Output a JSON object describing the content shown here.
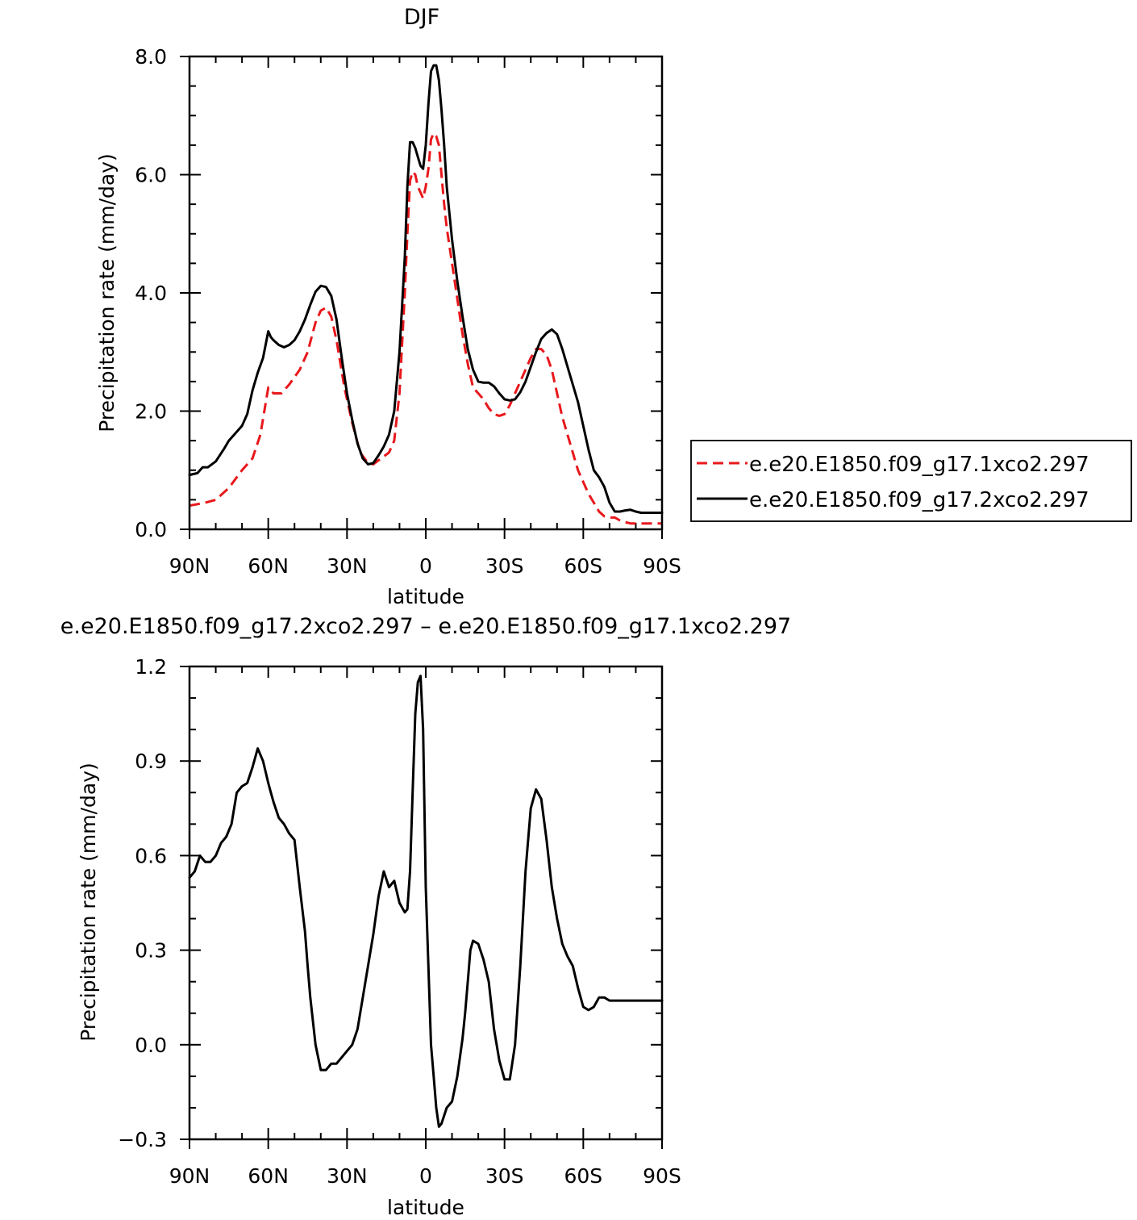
{
  "colors": {
    "series_a": "#e8181c",
    "series_b": "#000000",
    "axes": "#000000"
  },
  "chart_data": [
    {
      "type": "line",
      "title": "DJF",
      "xlabel": "latitude",
      "ylabel": "Precipitation rate (mm/day)",
      "xlim": [
        -90,
        90
      ],
      "ylim": [
        0,
        8
      ],
      "xticks": [
        {
          "v": -90,
          "label": "90N"
        },
        {
          "v": -60,
          "label": "60N"
        },
        {
          "v": -30,
          "label": "30N"
        },
        {
          "v": 0,
          "label": "0"
        },
        {
          "v": 30,
          "label": "30S"
        },
        {
          "v": 60,
          "label": "60S"
        },
        {
          "v": 90,
          "label": "90S"
        }
      ],
      "yticks": [
        {
          "v": 0,
          "label": "0.0"
        },
        {
          "v": 2,
          "label": "2.0"
        },
        {
          "v": 4,
          "label": "4.0"
        },
        {
          "v": 6,
          "label": "6.0"
        },
        {
          "v": 8,
          "label": "8.0"
        }
      ],
      "legend_position": "right",
      "series": [
        {
          "name": "e.e20.E1850.f09_g17.1xco2.297",
          "style": "dashed",
          "color": "#e8181c",
          "x": [
            -90,
            -84,
            -80,
            -75,
            -70,
            -66,
            -63,
            -60,
            -58,
            -55,
            -52,
            -48,
            -45,
            -42,
            -40,
            -38,
            -36,
            -34,
            -31,
            -28,
            -25,
            -22,
            -20,
            -17,
            -14,
            -12,
            -10,
            -8,
            -7,
            -6,
            -5,
            -4,
            -3,
            -2,
            -1,
            0,
            1,
            2,
            3,
            4,
            5,
            6,
            7,
            8,
            10,
            12,
            14,
            16,
            18,
            20,
            22,
            24,
            26,
            28,
            30,
            32,
            34,
            36,
            38,
            40,
            42,
            44,
            46,
            48,
            50,
            52,
            54,
            56,
            58,
            60,
            62,
            64,
            66,
            68,
            70,
            72,
            74,
            76,
            78,
            80,
            82,
            84,
            86,
            88,
            90
          ],
          "y": [
            0.4,
            0.45,
            0.5,
            0.7,
            1.0,
            1.2,
            1.6,
            2.4,
            2.3,
            2.3,
            2.45,
            2.7,
            3.0,
            3.5,
            3.7,
            3.75,
            3.6,
            3.2,
            2.4,
            1.8,
            1.3,
            1.12,
            1.1,
            1.2,
            1.3,
            1.5,
            2.3,
            4.0,
            5.0,
            5.9,
            6.05,
            6.0,
            5.8,
            5.7,
            5.6,
            5.8,
            6.1,
            6.6,
            6.7,
            6.65,
            6.5,
            6.0,
            5.5,
            5.1,
            4.5,
            3.9,
            3.3,
            2.8,
            2.4,
            2.3,
            2.2,
            2.05,
            1.95,
            1.92,
            1.95,
            2.1,
            2.3,
            2.5,
            2.7,
            2.9,
            3.05,
            3.05,
            2.95,
            2.7,
            2.3,
            1.9,
            1.6,
            1.3,
            1.0,
            0.8,
            0.6,
            0.45,
            0.3,
            0.22,
            0.2,
            0.2,
            0.15,
            0.12,
            0.1,
            0.1,
            0.1,
            0.1,
            0.1,
            0.1,
            0.1
          ]
        },
        {
          "name": "e.e20.E1850.f09_g17.2xco2.297",
          "style": "solid",
          "color": "#000000",
          "x": [
            -90,
            -87,
            -85,
            -83,
            -80,
            -77,
            -75,
            -72,
            -70,
            -68,
            -66,
            -64,
            -62,
            -60,
            -59,
            -58,
            -56,
            -54,
            -52,
            -50,
            -48,
            -46,
            -44,
            -42,
            -40,
            -38,
            -36,
            -34,
            -32,
            -30,
            -28,
            -26,
            -24,
            -22,
            -20,
            -18,
            -16,
            -14,
            -12,
            -10,
            -8,
            -7,
            -6,
            -5,
            -4,
            -3,
            -2,
            -1,
            0,
            1,
            2,
            3,
            4,
            5,
            6,
            7,
            8,
            10,
            12,
            14,
            16,
            18,
            20,
            22,
            24,
            26,
            28,
            30,
            32,
            34,
            36,
            38,
            40,
            42,
            44,
            46,
            48,
            50,
            52,
            54,
            56,
            58,
            60,
            62,
            64,
            66,
            68,
            70,
            72,
            74,
            76,
            78,
            80,
            82,
            84,
            86,
            88,
            90
          ],
          "y": [
            0.92,
            0.95,
            1.05,
            1.05,
            1.15,
            1.35,
            1.5,
            1.65,
            1.75,
            1.95,
            2.35,
            2.65,
            2.9,
            3.35,
            3.25,
            3.2,
            3.12,
            3.08,
            3.12,
            3.2,
            3.35,
            3.55,
            3.8,
            4.02,
            4.12,
            4.1,
            3.95,
            3.55,
            2.9,
            2.3,
            1.85,
            1.45,
            1.2,
            1.1,
            1.12,
            1.25,
            1.4,
            1.6,
            2.0,
            3.0,
            4.6,
            5.8,
            6.55,
            6.55,
            6.45,
            6.3,
            6.15,
            6.1,
            6.5,
            7.2,
            7.75,
            7.85,
            7.85,
            7.6,
            7.1,
            6.5,
            5.8,
            4.9,
            4.2,
            3.6,
            3.05,
            2.7,
            2.5,
            2.48,
            2.48,
            2.42,
            2.3,
            2.2,
            2.18,
            2.2,
            2.32,
            2.5,
            2.75,
            3.0,
            3.22,
            3.32,
            3.38,
            3.3,
            3.05,
            2.75,
            2.45,
            2.15,
            1.75,
            1.35,
            1.0,
            0.88,
            0.72,
            0.45,
            0.3,
            0.3,
            0.32,
            0.33,
            0.3,
            0.28,
            0.28,
            0.28,
            0.28,
            0.28
          ]
        }
      ]
    },
    {
      "type": "line",
      "title": "e.e20.E1850.f09_g17.2xco2.297 – e.e20.E1850.f09_g17.1xco2.297",
      "xlabel": "latitude",
      "ylabel": "Precipitation rate (mm/day)",
      "xlim": [
        -90,
        90
      ],
      "ylim": [
        -0.3,
        1.2
      ],
      "xticks": [
        {
          "v": -90,
          "label": "90N"
        },
        {
          "v": -60,
          "label": "60N"
        },
        {
          "v": -30,
          "label": "30N"
        },
        {
          "v": 0,
          "label": "0"
        },
        {
          "v": 30,
          "label": "30S"
        },
        {
          "v": 60,
          "label": "60S"
        },
        {
          "v": 90,
          "label": "90S"
        }
      ],
      "yticks": [
        {
          "v": -0.3,
          "label": "−0.3"
        },
        {
          "v": 0,
          "label": "0.0"
        },
        {
          "v": 0.3,
          "label": "0.3"
        },
        {
          "v": 0.6,
          "label": "0.6"
        },
        {
          "v": 0.9,
          "label": "0.9"
        },
        {
          "v": 1.2,
          "label": "1.2"
        }
      ],
      "series": [
        {
          "style": "solid",
          "color": "#000000",
          "x": [
            -90,
            -88,
            -86,
            -84,
            -82,
            -80,
            -78,
            -76,
            -74,
            -72,
            -70,
            -68,
            -66,
            -64,
            -62,
            -60,
            -59,
            -58,
            -56,
            -54,
            -52,
            -50,
            -48,
            -46,
            -45,
            -44,
            -42,
            -40,
            -38,
            -36,
            -34,
            -32,
            -30,
            -28,
            -26,
            -24,
            -22,
            -20,
            -18,
            -16,
            -14,
            -12,
            -10,
            -8,
            -7,
            -6,
            -5,
            -4,
            -3,
            -2,
            -1,
            0,
            2,
            3,
            4,
            5,
            6,
            8,
            10,
            12,
            14,
            15,
            16,
            17,
            18,
            20,
            22,
            24,
            26,
            28,
            30,
            32,
            34,
            36,
            38,
            40,
            42,
            44,
            46,
            48,
            50,
            52,
            54,
            56,
            58,
            60,
            62,
            64,
            66,
            68,
            70,
            72,
            74,
            76,
            78,
            80,
            82,
            84,
            86,
            88,
            90
          ],
          "y": [
            0.53,
            0.55,
            0.6,
            0.58,
            0.58,
            0.6,
            0.64,
            0.66,
            0.7,
            0.8,
            0.82,
            0.83,
            0.88,
            0.94,
            0.9,
            0.83,
            0.8,
            0.77,
            0.72,
            0.7,
            0.67,
            0.65,
            0.5,
            0.36,
            0.25,
            0.15,
            0.0,
            -0.08,
            -0.08,
            -0.06,
            -0.06,
            -0.04,
            -0.02,
            0.0,
            0.05,
            0.15,
            0.25,
            0.35,
            0.47,
            0.55,
            0.5,
            0.52,
            0.45,
            0.42,
            0.43,
            0.55,
            0.8,
            1.05,
            1.15,
            1.17,
            1.0,
            0.5,
            0.0,
            -0.1,
            -0.2,
            -0.26,
            -0.25,
            -0.2,
            -0.18,
            -0.1,
            0.02,
            0.1,
            0.2,
            0.3,
            0.33,
            0.32,
            0.27,
            0.2,
            0.05,
            -0.05,
            -0.11,
            -0.11,
            0.0,
            0.25,
            0.55,
            0.75,
            0.81,
            0.78,
            0.65,
            0.5,
            0.4,
            0.32,
            0.28,
            0.25,
            0.18,
            0.12,
            0.11,
            0.12,
            0.15,
            0.15,
            0.14,
            0.14,
            0.14,
            0.14,
            0.14,
            0.14,
            0.14,
            0.14,
            0.14,
            0.14,
            0.14
          ]
        }
      ]
    }
  ]
}
